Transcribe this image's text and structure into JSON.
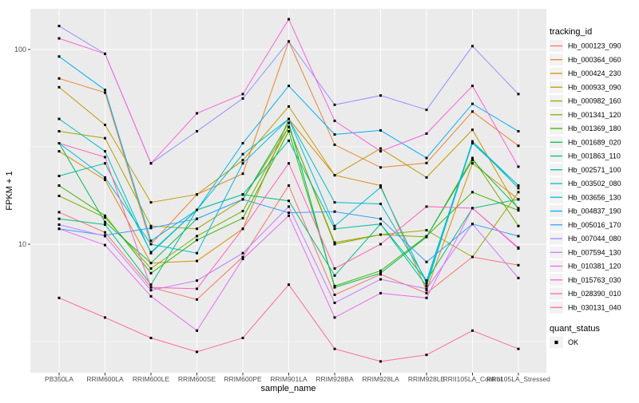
{
  "chart_data": {
    "type": "line",
    "title": "",
    "xlabel": "sample_name",
    "ylabel": "FPKM + 1",
    "y_scale": "log10",
    "y_ticks": [
      10,
      100
    ],
    "y_minor_breaks": [
      3.162,
      31.62
    ],
    "ylim": [
      2.2,
      165
    ],
    "legend_title": "tracking_id",
    "legend_position": "right",
    "grid": "on",
    "panel_bg": "#EBEBEB",
    "grid_color": "#FFFFFF",
    "tick_label_color": "#4D4D4D",
    "point_shape": "square",
    "point_color": "#000000",
    "categories": [
      "PB350LA",
      "RRIM600LA",
      "RRIM600LE",
      "RRIM600SE",
      "RRIM600PE",
      "RRIM901LA",
      "RRIM928BA",
      "RRIM928LA",
      "RRIM928LE",
      "RRII105LA_Control",
      "RRII105LA_Stressed"
    ],
    "series": [
      {
        "name": "Hb_000123_090",
        "color": "#F8766D",
        "values": [
          14.6,
          11.5,
          6.0,
          5.2,
          8.6,
          20,
          5.5,
          7.0,
          5.6,
          8.6,
          7.8
        ]
      },
      {
        "name": "Hb_000364_060",
        "color": "#EA8331",
        "values": [
          71,
          60,
          10,
          18,
          23,
          110,
          32.4,
          24.8,
          26.1,
          48,
          32
        ]
      },
      {
        "name": "Hb_000424_230",
        "color": "#D89000",
        "values": [
          30,
          21.4,
          8.0,
          8.2,
          12,
          44,
          22.6,
          20,
          5.8,
          26,
          17
        ]
      },
      {
        "name": "Hb_000933_090",
        "color": "#C09B00",
        "values": [
          64,
          41,
          16.4,
          18,
          27,
          51,
          22.6,
          31,
          22,
          38.7,
          15
        ]
      },
      {
        "name": "Hb_000982_160",
        "color": "#A3A500",
        "values": [
          38,
          35,
          12.4,
          12,
          17,
          40,
          10.2,
          11.2,
          11.8,
          8.6,
          18.5
        ]
      },
      {
        "name": "Hb_001341_120",
        "color": "#7CAE00",
        "values": [
          17.7,
          13.7,
          7.5,
          11,
          14.8,
          40,
          10,
          11.2,
          10.9,
          27.7,
          12.4
        ]
      },
      {
        "name": "Hb_001369_180",
        "color": "#39B600",
        "values": [
          20,
          14,
          7.1,
          10.5,
          13.6,
          38,
          6.1,
          7.3,
          11,
          18.5,
          14.9
        ]
      },
      {
        "name": "Hb_001689_020",
        "color": "#00BB4E",
        "values": [
          33,
          13,
          8.0,
          13.5,
          17,
          42,
          6.0,
          7.1,
          10.9,
          27,
          15.3
        ]
      },
      {
        "name": "Hb_001863_110",
        "color": "#00BF7D",
        "values": [
          13.5,
          12.6,
          6.2,
          15,
          18,
          16.7,
          6.9,
          12.7,
          6.5,
          15.3,
          17
        ]
      },
      {
        "name": "Hb_002571_100",
        "color": "#00C1A3",
        "values": [
          22.4,
          26,
          9.1,
          15,
          18,
          34,
          12,
          12.7,
          6.1,
          33.7,
          19.4
        ]
      },
      {
        "name": "Hb_003502_080",
        "color": "#00BFC4",
        "values": [
          44,
          30,
          9.0,
          15,
          29,
          44,
          16.4,
          16.1,
          6.5,
          33.7,
          20
        ]
      },
      {
        "name": "Hb_003656_130",
        "color": "#00BAE0",
        "values": [
          33,
          22,
          10,
          9.0,
          26,
          44,
          12.4,
          19.6,
          6.3,
          33,
          20
        ]
      },
      {
        "name": "Hb_004837_190",
        "color": "#00B0F6",
        "values": [
          92,
          62,
          10.4,
          15,
          33,
          65,
          36.6,
          38.4,
          27.7,
          52.6,
          38
        ]
      },
      {
        "name": "Hb_005016_170",
        "color": "#35A2FF",
        "values": [
          12.0,
          11.1,
          12.1,
          13.5,
          17,
          14.5,
          14.7,
          13.5,
          8.1,
          12.7,
          11
        ]
      },
      {
        "name": "Hb_007044_080",
        "color": "#9590FF",
        "values": [
          132,
          95,
          26,
          38,
          56,
          110,
          52,
          58,
          49,
          104,
          59
        ]
      },
      {
        "name": "Hb_007594_130",
        "color": "#C77CFF",
        "values": [
          12.6,
          11.0,
          5.8,
          6.5,
          9.0,
          15.6,
          5.0,
          6.6,
          5.9,
          12.7,
          6.7
        ]
      },
      {
        "name": "Hb_010381_120",
        "color": "#E76BF3",
        "values": [
          12.0,
          9.9,
          5.4,
          3.6,
          8.4,
          14,
          4.2,
          5.6,
          5.3,
          15.3,
          9.5
        ]
      },
      {
        "name": "Hb_015763_030",
        "color": "#FA62DB",
        "values": [
          114,
          95,
          26,
          47,
          59,
          143,
          43,
          30,
          37,
          65,
          25
        ]
      },
      {
        "name": "Hb_028390_010",
        "color": "#FF62BC",
        "values": [
          33,
          28,
          6.0,
          5.9,
          12,
          26,
          7.5,
          10,
          15.6,
          15.3,
          9.6
        ]
      },
      {
        "name": "Hb_030131_040",
        "color": "#FF6A98",
        "values": [
          5.3,
          4.2,
          3.3,
          2.8,
          3.3,
          6.2,
          2.9,
          2.5,
          2.7,
          3.6,
          2.9
        ]
      }
    ],
    "quant_legend": {
      "title": "quant_status",
      "items": [
        "OK"
      ]
    }
  }
}
